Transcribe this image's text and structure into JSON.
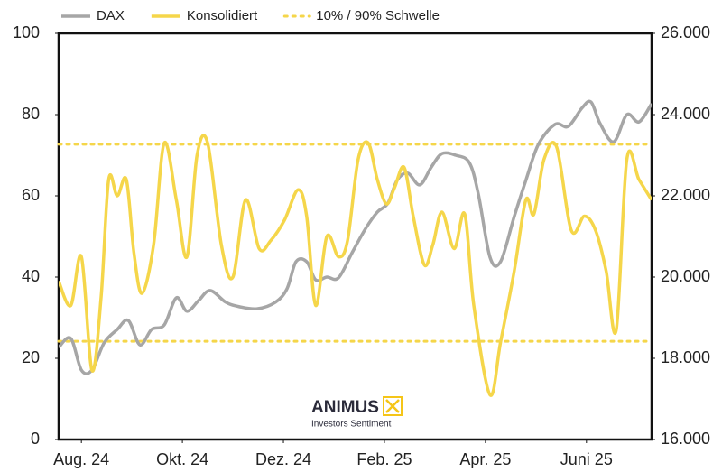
{
  "chart_data": {
    "type": "line",
    "xticks": [
      {
        "value": 0,
        "label": "Aug. 24"
      },
      {
        "value": 2,
        "label": "Okt. 24"
      },
      {
        "value": 4,
        "label": "Dez. 24"
      },
      {
        "value": 6,
        "label": "Feb. 25"
      },
      {
        "value": 8,
        "label": "Apr. 25"
      },
      {
        "value": 10,
        "label": "Juni 25"
      }
    ],
    "xlim": [
      -0.45,
      11.29
    ],
    "ylim": [
      0,
      100
    ],
    "yticks": [
      0,
      20,
      40,
      60,
      80,
      100
    ],
    "y2lim": [
      16000,
      26000
    ],
    "y2ticks": [
      {
        "value": 16000,
        "label": "16.000"
      },
      {
        "value": 18000,
        "label": "18.000"
      },
      {
        "value": 20000,
        "label": "20.000"
      },
      {
        "value": 22000,
        "label": "22.000"
      },
      {
        "value": 24000,
        "label": "24.000"
      },
      {
        "value": 26000,
        "label": "26.000"
      }
    ],
    "series": [
      {
        "name": "DAX",
        "color": "#a6a6a6",
        "axis": "y2",
        "x": [
          -0.45,
          -0.21,
          0,
          0.21,
          0.45,
          0.71,
          0.93,
          1.16,
          1.39,
          1.64,
          1.88,
          2.09,
          2.32,
          2.55,
          2.86,
          3.13,
          3.48,
          3.84,
          4.07,
          4.25,
          4.46,
          4.64,
          4.86,
          5.09,
          5.36,
          5.63,
          5.86,
          6.07,
          6.25,
          6.46,
          6.7,
          6.93,
          7.14,
          7.41,
          7.68,
          7.86,
          8.09,
          8.3,
          8.57,
          8.8,
          9.05,
          9.38,
          9.64,
          9.91,
          10.09,
          10.27,
          10.54,
          10.8,
          11.04,
          11.29
        ],
        "values": [
          18270,
          18490,
          17710,
          17710,
          18380,
          18710,
          18930,
          18330,
          18710,
          18820,
          19490,
          19160,
          19420,
          19670,
          19380,
          19270,
          19220,
          19380,
          19710,
          20380,
          20380,
          19930,
          20000,
          19980,
          20600,
          21200,
          21600,
          21820,
          22380,
          22560,
          22270,
          22710,
          23040,
          23000,
          22820,
          22040,
          20490,
          20380,
          21490,
          22380,
          23270,
          23760,
          23710,
          24160,
          24310,
          23780,
          23330,
          24000,
          23820,
          24270
        ]
      },
      {
        "name": "Konsolidiert",
        "color": "#f5d64a",
        "axis": "y",
        "x": [
          -0.45,
          -0.21,
          0,
          0.21,
          0.39,
          0.54,
          0.71,
          0.89,
          1.04,
          1.2,
          1.43,
          1.64,
          1.88,
          2.09,
          2.29,
          2.5,
          2.77,
          3,
          3.25,
          3.52,
          3.75,
          4.02,
          4.29,
          4.46,
          4.64,
          4.86,
          5.09,
          5.27,
          5.48,
          5.68,
          5.86,
          6.04,
          6.2,
          6.39,
          6.57,
          6.79,
          6.96,
          7.14,
          7.38,
          7.59,
          7.77,
          8.09,
          8.3,
          8.57,
          8.8,
          8.96,
          9.16,
          9.41,
          9.7,
          9.96,
          10.18,
          10.39,
          10.59,
          10.8,
          11.04,
          11.29
        ],
        "values": [
          39,
          33,
          45,
          17,
          35,
          64,
          60,
          64,
          46,
          36,
          48,
          73,
          59,
          45,
          70,
          73,
          48,
          40,
          59,
          47,
          49,
          54,
          61.5,
          55,
          33,
          50,
          45,
          49,
          69,
          73,
          64,
          58,
          62,
          67,
          55,
          43,
          48,
          56,
          47,
          55.5,
          33,
          11,
          24,
          41.5,
          59,
          55.5,
          69,
          72,
          51.5,
          55,
          51.5,
          41.5,
          27,
          69,
          64,
          59
        ]
      }
    ],
    "thresholds": {
      "name": "10% / 90% Schwelle",
      "color": "#f5d64a",
      "values": [
        24.2,
        72.7
      ]
    }
  },
  "logo": {
    "name": "ANIMUS",
    "tagline": "Investors Sentiment"
  }
}
